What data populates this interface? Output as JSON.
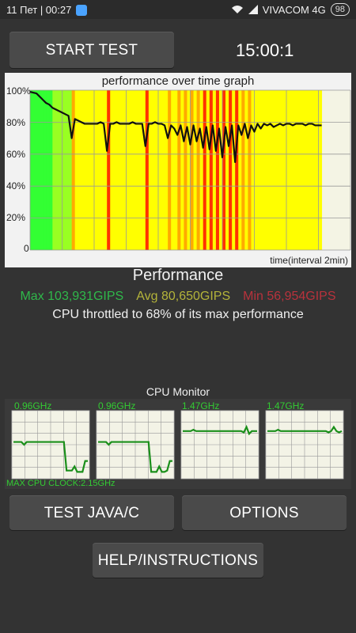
{
  "status_bar": {
    "date_time": "11 Пет | 00:27",
    "carrier": "VIVACOM 4G",
    "battery": "98"
  },
  "controls": {
    "start_test": "START TEST",
    "timer": "15:00:1",
    "test_java_c": "TEST JAVA/C",
    "options": "OPTIONS",
    "help": "HELP/INSTRUCTIONS"
  },
  "chart_data": {
    "type": "line",
    "title": "performance over time graph",
    "xlabel": "time(interval 2min)",
    "ylabel": "",
    "y_tick_labels": [
      "100%",
      "80%",
      "60%",
      "40%",
      "20%",
      "0"
    ],
    "ylim": [
      0,
      100
    ],
    "xlim": [
      0,
      100
    ],
    "grid": true,
    "series": [
      {
        "x": [
          0,
          2,
          3,
          4,
          5,
          6,
          7,
          8,
          9,
          10,
          11,
          12,
          13,
          14,
          15,
          16,
          17,
          18,
          19,
          20,
          21,
          22,
          23,
          24,
          25,
          26,
          27,
          28,
          29,
          30,
          31,
          32,
          33,
          34,
          35,
          36,
          37,
          38,
          39,
          40,
          41,
          42,
          43,
          44,
          45,
          46,
          47,
          48,
          49,
          50,
          51,
          52,
          53,
          54,
          55,
          56,
          57,
          58,
          59,
          60,
          61,
          62,
          63,
          64,
          65,
          66,
          67,
          68,
          69,
          70,
          71,
          72,
          73,
          74,
          75,
          76,
          77,
          78,
          79,
          80,
          81,
          82,
          83,
          84,
          85,
          86,
          87,
          88,
          89,
          90,
          91
        ],
        "values": [
          99,
          98,
          96,
          94,
          92,
          91,
          89,
          88,
          87,
          86,
          85,
          84,
          70,
          82,
          81,
          80,
          79,
          79,
          79,
          79,
          79,
          80,
          79,
          62,
          79,
          79,
          80,
          79,
          79,
          79,
          79,
          80,
          79,
          79,
          79,
          65,
          79,
          79,
          80,
          79,
          79,
          78,
          70,
          78,
          76,
          72,
          78,
          68,
          77,
          66,
          78,
          68,
          76,
          64,
          77,
          63,
          78,
          62,
          76,
          58,
          77,
          65,
          78,
          55,
          78,
          72,
          79,
          70,
          78,
          74,
          79,
          76,
          79,
          78,
          79,
          77,
          78,
          79,
          78,
          79,
          79,
          78,
          79,
          79,
          79,
          78,
          79,
          79,
          78,
          78,
          78
        ]
      }
    ],
    "bar_colors": {
      "high": "#33ff33",
      "mid": "#ffff00",
      "low": "#ff3300"
    }
  },
  "performance": {
    "title": "Performance",
    "max": "Max 103,931GIPS",
    "avg": "Avg 80,650GIPS",
    "min": "Min 56,954GIPS",
    "throttle_text": "CPU throttled to 68% of its max performance",
    "colors": {
      "max": "#2fb84a",
      "avg": "#b3b33a",
      "min": "#b8323c"
    }
  },
  "cpu_monitor": {
    "title": "CPU Monitor",
    "max_clock": "MAX CPU CLOCK:2.15GHz",
    "cores": [
      {
        "label": "0.96GHz",
        "levels": [
          54,
          54,
          54,
          54,
          50,
          54,
          54,
          54,
          54,
          54,
          54,
          54,
          54,
          54,
          54,
          54,
          54,
          54,
          54,
          54,
          12,
          12,
          12,
          18,
          10,
          10,
          10,
          26,
          26
        ]
      },
      {
        "label": "0.96GHz",
        "levels": [
          54,
          54,
          54,
          54,
          50,
          54,
          54,
          54,
          54,
          54,
          54,
          54,
          54,
          54,
          54,
          54,
          54,
          54,
          54,
          54,
          10,
          10,
          10,
          18,
          10,
          10,
          12,
          26,
          26
        ]
      },
      {
        "label": "1.47GHz",
        "levels": [
          70,
          70,
          70,
          70,
          72,
          70,
          70,
          70,
          70,
          70,
          70,
          70,
          70,
          70,
          70,
          70,
          70,
          70,
          70,
          70,
          70,
          70,
          70,
          68,
          76,
          66,
          70,
          70,
          70
        ]
      },
      {
        "label": "1.47GHz",
        "levels": [
          70,
          70,
          70,
          70,
          72,
          70,
          70,
          70,
          70,
          70,
          70,
          70,
          70,
          70,
          70,
          70,
          70,
          70,
          70,
          70,
          70,
          70,
          70,
          68,
          70,
          76,
          70,
          68,
          70
        ]
      }
    ]
  }
}
